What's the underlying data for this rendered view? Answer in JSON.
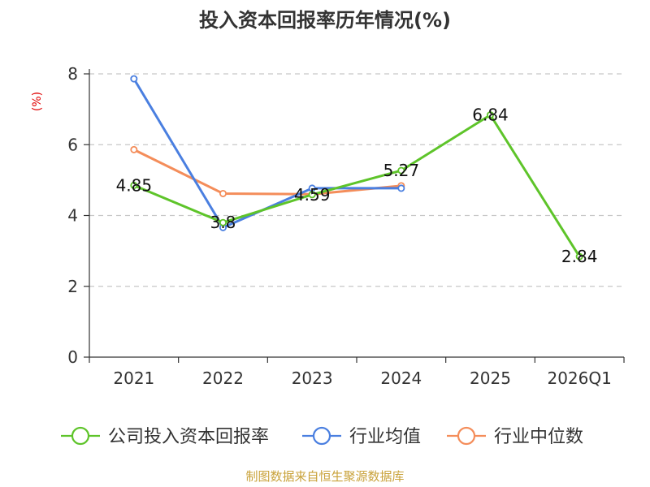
{
  "chart_data": {
    "type": "line",
    "title": "投入资本回报率历年情况(%)",
    "ylabel": "(%)",
    "xlabel": "",
    "categories": [
      "2021",
      "2022",
      "2023",
      "2024",
      "2025",
      "2026Q1"
    ],
    "ylim": [
      0,
      8
    ],
    "yticks": [
      0,
      2,
      4,
      6,
      8
    ],
    "grid": true,
    "legend_position": "bottom",
    "series": [
      {
        "name": "公司投入资本回报率",
        "color": "#5ec42a",
        "values": [
          4.85,
          3.8,
          4.59,
          5.27,
          6.84,
          2.84
        ],
        "labels": [
          "4.85",
          "3.8",
          "4.59",
          "5.27",
          "6.84",
          "2.84"
        ]
      },
      {
        "name": "行业均值",
        "color": "#4a7fe0",
        "values": [
          7.86,
          3.66,
          4.77,
          4.77,
          null,
          null
        ]
      },
      {
        "name": "行业中位数",
        "color": "#f48d5a",
        "values": [
          5.86,
          4.62,
          4.6,
          4.84,
          null,
          null
        ]
      }
    ]
  },
  "source": "制图数据来自恒生聚源数据库"
}
